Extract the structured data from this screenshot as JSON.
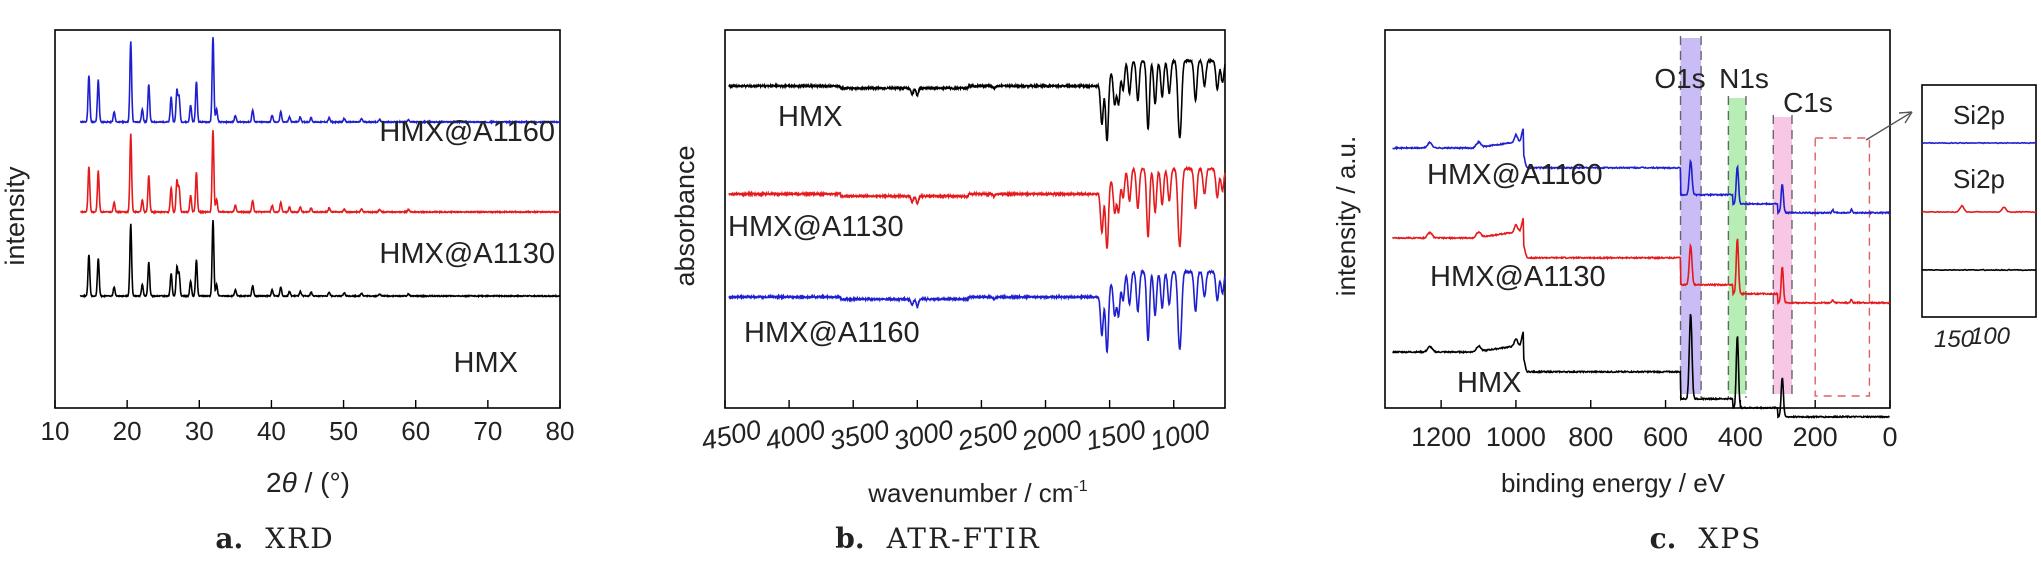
{
  "colors": {
    "black": "#000000",
    "red": "#e41a1c",
    "blue": "#1f1fd0",
    "axis": "#000000"
  },
  "chart_data": [
    {
      "type": "line",
      "caption_letter": "a.",
      "caption_name": "XRD",
      "xlabel_pre": "2",
      "xlabel_theta": "θ",
      "xlabel_post": " / (°)",
      "ylabel": "intensity",
      "xlim": [
        10,
        80
      ],
      "xticks": [
        "10",
        "20",
        "30",
        "40",
        "50",
        "60",
        "70",
        "80"
      ],
      "peaks_2theta": [
        14.7,
        16.0,
        18.2,
        20.5,
        22.1,
        23.0,
        26.1,
        26.9,
        27.2,
        28.8,
        29.6,
        31.9,
        32.4,
        35.0,
        37.4,
        40.1,
        41.3,
        42.5,
        44.0,
        45.5,
        48.0,
        50.1,
        52.5,
        55.0,
        59.0
      ],
      "peak_rel_intensity": [
        0.55,
        0.5,
        0.12,
        0.95,
        0.15,
        0.45,
        0.3,
        0.38,
        0.3,
        0.2,
        0.48,
        1.0,
        0.15,
        0.08,
        0.14,
        0.08,
        0.12,
        0.06,
        0.06,
        0.05,
        0.05,
        0.04,
        0.04,
        0.03,
        0.03
      ],
      "series": [
        {
          "name": "HMX@A1160",
          "color": "blue",
          "offset": 2,
          "scale": 0.95
        },
        {
          "name": "HMX@A1130",
          "color": "red",
          "offset": 1,
          "scale": 0.9
        },
        {
          "name": "HMX",
          "color": "black",
          "offset": 0,
          "scale": 0.85
        }
      ]
    },
    {
      "type": "line",
      "caption_letter": "b.",
      "caption_name": "ATR-FTIR",
      "xlabel": "wavenumber / cm",
      "xlabel_sup": "-1",
      "ylabel": "absorbance",
      "xlim": [
        4500,
        600
      ],
      "xticks": [
        "4500",
        "4000",
        "3500",
        "3000",
        "2500",
        "2000",
        "1500",
        "1000"
      ],
      "xtick_values": [
        4500,
        4000,
        3500,
        3000,
        2500,
        2000,
        1500,
        1000
      ],
      "bands_cm1": [
        3040,
        3000,
        2400,
        1560,
        1520,
        1460,
        1430,
        1395,
        1345,
        1280,
        1200,
        1145,
        1090,
        1035,
        960,
        945,
        830,
        760,
        660,
        620
      ],
      "band_depth": [
        0.08,
        0.1,
        0.03,
        0.6,
        0.9,
        0.5,
        0.55,
        0.4,
        0.45,
        0.55,
        0.95,
        0.6,
        0.5,
        0.45,
        0.7,
        0.65,
        0.55,
        0.35,
        0.4,
        0.3
      ],
      "series": [
        {
          "name": "HMX",
          "color": "black",
          "offset": 2
        },
        {
          "name": "HMX@A1130",
          "color": "red",
          "offset": 1
        },
        {
          "name": "HMX@A1160",
          "color": "blue",
          "offset": 0
        }
      ]
    },
    {
      "type": "line",
      "caption_letter": "c.",
      "caption_name": "XPS",
      "xlabel": "binding energy / eV",
      "ylabel": "intensity / a.u.",
      "xlim": [
        1350,
        0
      ],
      "xticks": [
        "1200",
        "1000",
        "800",
        "600",
        "400",
        "200",
        "0"
      ],
      "xtick_values": [
        1200,
        1000,
        800,
        600,
        400,
        200,
        0
      ],
      "regions": [
        {
          "label": "O1s",
          "from": 560,
          "to": 505,
          "fill": "#b8a6f0"
        },
        {
          "label": "N1s",
          "from": 432,
          "to": 385,
          "fill": "#9ee89e"
        },
        {
          "label": "C1s",
          "from": 312,
          "to": 262,
          "fill": "#f4b4dc"
        }
      ],
      "si_window": {
        "from": 200,
        "to": 55
      },
      "inset": {
        "label_top": "Si2p",
        "label_mid": "Si2p",
        "xtick_a": "150",
        "xtick_b": "100"
      },
      "series": [
        {
          "name": "HMX@A1160",
          "color": "blue",
          "offset": 2
        },
        {
          "name": "HMX@A1130",
          "color": "red",
          "offset": 1
        },
        {
          "name": "HMX",
          "color": "black",
          "offset": 0
        }
      ]
    }
  ]
}
